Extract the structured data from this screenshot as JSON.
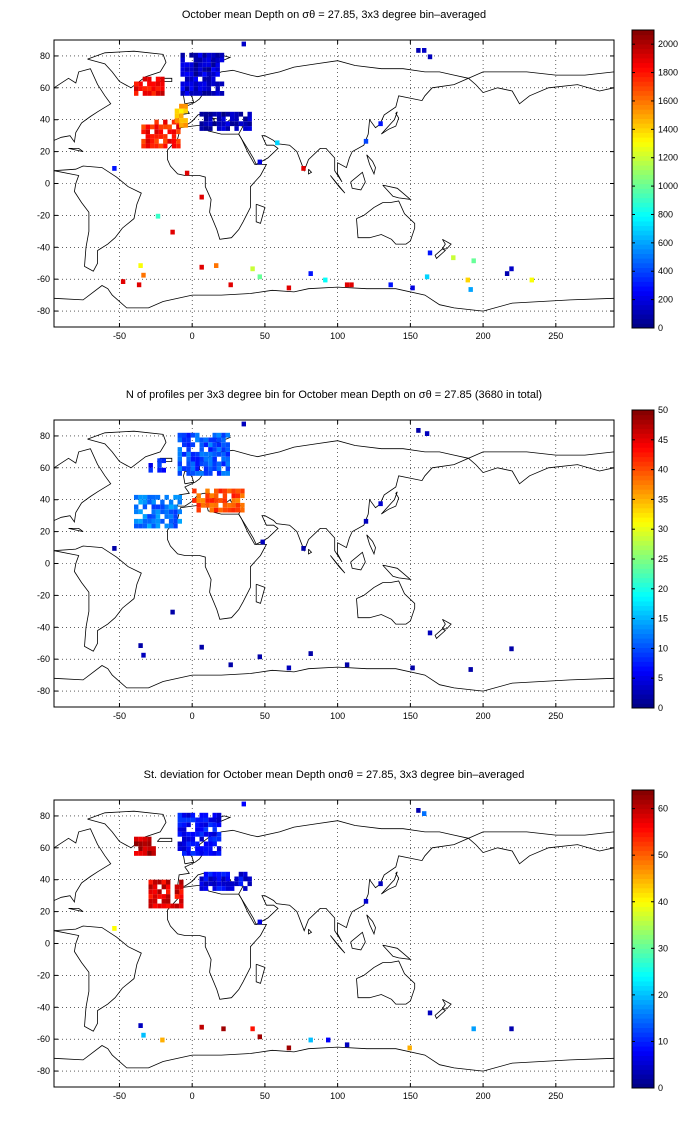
{
  "panels": [
    {
      "title": "October mean Depth on σθ = 27.85, 3x3 degree bin–averaged",
      "colorbar": {
        "min": 0,
        "max": 2100,
        "ticks": [
          0,
          200,
          400,
          600,
          800,
          1000,
          1200,
          1400,
          1600,
          1800,
          2000
        ]
      },
      "blobs": [
        {
          "lon": [
            -8,
            20
          ],
          "lat": [
            55,
            80
          ],
          "v": 150
        },
        {
          "lon": [
            5,
            40
          ],
          "lat": [
            33,
            45
          ],
          "v": 100
        },
        {
          "lon": [
            -40,
            -20
          ],
          "lat": [
            55,
            67
          ],
          "v": 1850
        },
        {
          "lon": [
            -35,
            -8
          ],
          "lat": [
            22,
            40
          ],
          "v": 1800
        },
        {
          "lon": [
            -12,
            -3
          ],
          "lat": [
            35,
            48
          ],
          "v": 1450
        }
      ],
      "points": [
        {
          "lon": 34,
          "lat": 86,
          "v": 150
        },
        {
          "lon": 154,
          "lat": 82,
          "v": 100
        },
        {
          "lon": 158,
          "lat": 82,
          "v": 150
        },
        {
          "lon": 162,
          "lat": 78,
          "v": 120
        },
        {
          "lon": -55,
          "lat": 8,
          "v": 300
        },
        {
          "lon": -5,
          "lat": 5,
          "v": 1900
        },
        {
          "lon": 5,
          "lat": -10,
          "v": 1900
        },
        {
          "lon": 45,
          "lat": 12,
          "v": 200
        },
        {
          "lon": 57,
          "lat": 24,
          "v": 700
        },
        {
          "lon": 75,
          "lat": 8,
          "v": 1900
        },
        {
          "lon": 118,
          "lat": 25,
          "v": 400
        },
        {
          "lon": 128,
          "lat": 36,
          "v": 300
        },
        {
          "lon": -25,
          "lat": -22,
          "v": 900
        },
        {
          "lon": -15,
          "lat": -32,
          "v": 1900
        },
        {
          "lon": -37,
          "lat": -53,
          "v": 1300
        },
        {
          "lon": -35,
          "lat": -59,
          "v": 1600
        },
        {
          "lon": -49,
          "lat": -63,
          "v": 1900
        },
        {
          "lon": -38,
          "lat": -65,
          "v": 1900
        },
        {
          "lon": 5,
          "lat": -54,
          "v": 1900
        },
        {
          "lon": 15,
          "lat": -53,
          "v": 1600
        },
        {
          "lon": 25,
          "lat": -65,
          "v": 1900
        },
        {
          "lon": 40,
          "lat": -55,
          "v": 1200
        },
        {
          "lon": 45,
          "lat": -60,
          "v": 1000
        },
        {
          "lon": 65,
          "lat": -67,
          "v": 1900
        },
        {
          "lon": 80,
          "lat": -58,
          "v": 300
        },
        {
          "lon": 90,
          "lat": -62,
          "v": 800
        },
        {
          "lon": 105,
          "lat": -65,
          "v": 1900
        },
        {
          "lon": 108,
          "lat": -65,
          "v": 1900
        },
        {
          "lon": 135,
          "lat": -65,
          "v": 300
        },
        {
          "lon": 150,
          "lat": -67,
          "v": 200
        },
        {
          "lon": 162,
          "lat": -45,
          "v": 300
        },
        {
          "lon": 160,
          "lat": -60,
          "v": 700
        },
        {
          "lon": 178,
          "lat": -48,
          "v": 1200
        },
        {
          "lon": 192,
          "lat": -50,
          "v": 1000
        },
        {
          "lon": 188,
          "lat": -62,
          "v": 1400
        },
        {
          "lon": 190,
          "lat": -68,
          "v": 600
        },
        {
          "lon": 215,
          "lat": -58,
          "v": 100
        },
        {
          "lon": 218,
          "lat": -55,
          "v": 150
        },
        {
          "lon": 232,
          "lat": -62,
          "v": 1300
        }
      ]
    },
    {
      "title": "N of profiles per 3x3 degree bin for October mean Depth on σθ = 27.85 (3680 in total)",
      "colorbar": {
        "min": 0,
        "max": 50,
        "ticks": [
          0,
          5,
          10,
          15,
          20,
          25,
          30,
          35,
          40,
          45,
          50
        ]
      },
      "blobs": [
        {
          "lon": [
            -10,
            25
          ],
          "lat": [
            55,
            80
          ],
          "v": 10
        },
        {
          "lon": [
            -40,
            -8
          ],
          "lat": [
            22,
            42
          ],
          "v": 12
        },
        {
          "lon": [
            0,
            35
          ],
          "lat": [
            32,
            45
          ],
          "v": 40
        },
        {
          "lon": [
            -30,
            -20
          ],
          "lat": [
            57,
            65
          ],
          "v": 8
        }
      ],
      "points": [
        {
          "lon": 34,
          "lat": 86,
          "v": 3
        },
        {
          "lon": 154,
          "lat": 82,
          "v": 2
        },
        {
          "lon": 160,
          "lat": 80,
          "v": 3
        },
        {
          "lon": -55,
          "lat": 8,
          "v": 2
        },
        {
          "lon": 47,
          "lat": 12,
          "v": 3
        },
        {
          "lon": 75,
          "lat": 8,
          "v": 2
        },
        {
          "lon": 118,
          "lat": 25,
          "v": 3
        },
        {
          "lon": 128,
          "lat": 36,
          "v": 4
        },
        {
          "lon": -15,
          "lat": -32,
          "v": 2
        },
        {
          "lon": -37,
          "lat": -53,
          "v": 2
        },
        {
          "lon": -35,
          "lat": -59,
          "v": 3
        },
        {
          "lon": 5,
          "lat": -54,
          "v": 2
        },
        {
          "lon": 25,
          "lat": -65,
          "v": 2
        },
        {
          "lon": 45,
          "lat": -60,
          "v": 2
        },
        {
          "lon": 65,
          "lat": -67,
          "v": 3
        },
        {
          "lon": 80,
          "lat": -58,
          "v": 2
        },
        {
          "lon": 105,
          "lat": -65,
          "v": 2
        },
        {
          "lon": 150,
          "lat": -67,
          "v": 2
        },
        {
          "lon": 162,
          "lat": -45,
          "v": 3
        },
        {
          "lon": 190,
          "lat": -68,
          "v": 2
        },
        {
          "lon": 218,
          "lat": -55,
          "v": 2
        }
      ]
    },
    {
      "title": "St. deviation for October mean Depth onσθ = 27.85, 3x3 degree bin–averaged",
      "colorbar": {
        "min": 0,
        "max": 64,
        "ticks": [
          0,
          10,
          20,
          30,
          40,
          50,
          60
        ]
      },
      "blobs": [
        {
          "lon": [
            -10,
            20
          ],
          "lat": [
            55,
            80
          ],
          "v": 8
        },
        {
          "lon": [
            -40,
            -25
          ],
          "lat": [
            55,
            66
          ],
          "v": 60
        },
        {
          "lon": [
            -30,
            -8
          ],
          "lat": [
            22,
            40
          ],
          "v": 58
        },
        {
          "lon": [
            5,
            40
          ],
          "lat": [
            33,
            45
          ],
          "v": 7
        }
      ],
      "points": [
        {
          "lon": 34,
          "lat": 86,
          "v": 8
        },
        {
          "lon": 154,
          "lat": 82,
          "v": 3
        },
        {
          "lon": 158,
          "lat": 80,
          "v": 15
        },
        {
          "lon": -55,
          "lat": 8,
          "v": 40
        },
        {
          "lon": 45,
          "lat": 12,
          "v": 6
        },
        {
          "lon": 118,
          "lat": 25,
          "v": 5
        },
        {
          "lon": 128,
          "lat": 36,
          "v": 4
        },
        {
          "lon": -37,
          "lat": -53,
          "v": 4
        },
        {
          "lon": -35,
          "lat": -59,
          "v": 20
        },
        {
          "lon": -22,
          "lat": -62,
          "v": 45
        },
        {
          "lon": 5,
          "lat": -54,
          "v": 60
        },
        {
          "lon": 20,
          "lat": -55,
          "v": 62
        },
        {
          "lon": 40,
          "lat": -55,
          "v": 55
        },
        {
          "lon": 45,
          "lat": -60,
          "v": 62
        },
        {
          "lon": 65,
          "lat": -67,
          "v": 62
        },
        {
          "lon": 80,
          "lat": -62,
          "v": 20
        },
        {
          "lon": 92,
          "lat": -62,
          "v": 8
        },
        {
          "lon": 105,
          "lat": -65,
          "v": 4
        },
        {
          "lon": 148,
          "lat": -67,
          "v": 45
        },
        {
          "lon": 162,
          "lat": -45,
          "v": 4
        },
        {
          "lon": 192,
          "lat": -55,
          "v": 18
        },
        {
          "lon": 218,
          "lat": -55,
          "v": 3
        }
      ]
    }
  ],
  "axes": {
    "xlim": [
      -95,
      290
    ],
    "ylim": [
      -90,
      90
    ],
    "xticks": [
      -50,
      0,
      50,
      100,
      150,
      200,
      250
    ],
    "yticks": [
      -80,
      -60,
      -40,
      -20,
      0,
      20,
      40,
      60,
      80
    ],
    "grid": "dotted"
  },
  "colormap": "jet"
}
